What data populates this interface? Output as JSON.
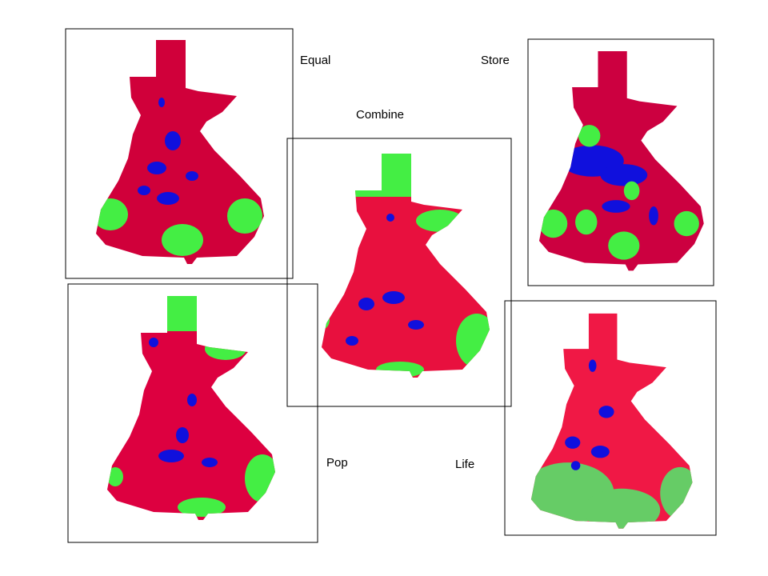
{
  "panels": [
    {
      "label": "Equal"
    },
    {
      "label": "Store"
    },
    {
      "label": "Combine"
    },
    {
      "label": "Pop"
    },
    {
      "label": "Life"
    }
  ]
}
